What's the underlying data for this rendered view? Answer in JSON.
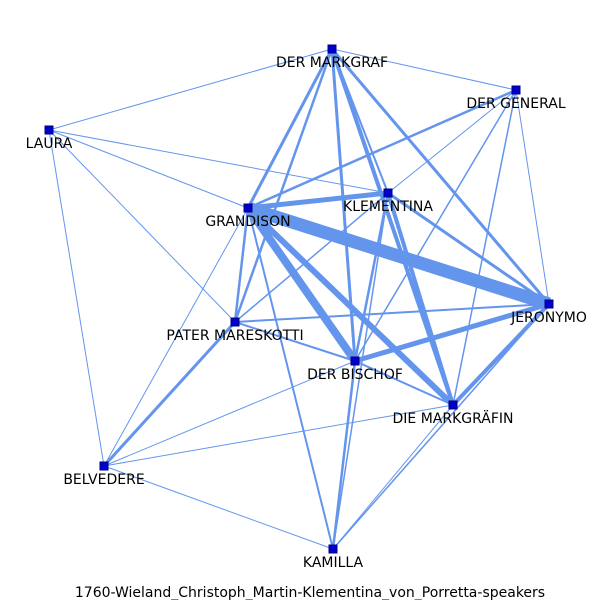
{
  "caption": "1760-Wieland_Christoph_Martin-Klementina_von_Porretta-speakers",
  "colors": {
    "edge": "#6495ED",
    "node": "#0000CD",
    "node_border": "#000080",
    "text": "#000000"
  },
  "nodes": [
    {
      "id": "markgraf",
      "label": "DER MARKGRAF"
    },
    {
      "id": "general",
      "label": "DER GENERAL"
    },
    {
      "id": "laura",
      "label": "LAURA"
    },
    {
      "id": "grandison",
      "label": "GRANDISON"
    },
    {
      "id": "klementina",
      "label": "KLEMENTINA"
    },
    {
      "id": "jeronymo",
      "label": "JERONYMO"
    },
    {
      "id": "pater",
      "label": "PATER MARESKOTTI"
    },
    {
      "id": "bischof",
      "label": "DER BISCHOF"
    },
    {
      "id": "markgraefin",
      "label": "DIE MARKGRÄFIN"
    },
    {
      "id": "belvedere",
      "label": "BELVEDERE"
    },
    {
      "id": "kamilla",
      "label": "KAMILLA"
    }
  ],
  "edges": [
    {
      "source": "grandison",
      "target": "jeronymo",
      "weight": 13
    },
    {
      "source": "grandison",
      "target": "bischof",
      "weight": 8
    },
    {
      "source": "grandison",
      "target": "markgraefin",
      "weight": 6
    },
    {
      "source": "grandison",
      "target": "klementina",
      "weight": 5
    },
    {
      "source": "bischof",
      "target": "jeronymo",
      "weight": 5
    },
    {
      "source": "markgraefin",
      "target": "jeronymo",
      "weight": 4
    },
    {
      "source": "klementina",
      "target": "markgraefin",
      "weight": 4
    },
    {
      "source": "markgraf",
      "target": "markgraefin",
      "weight": 4
    },
    {
      "source": "markgraf",
      "target": "grandison",
      "weight": 3
    },
    {
      "source": "markgraf",
      "target": "jeronymo",
      "weight": 3
    },
    {
      "source": "markgraf",
      "target": "bischof",
      "weight": 3
    },
    {
      "source": "markgraf",
      "target": "pater",
      "weight": 2.5
    },
    {
      "source": "markgraf",
      "target": "klementina",
      "weight": 2
    },
    {
      "source": "klementina",
      "target": "jeronymo",
      "weight": 3
    },
    {
      "source": "klementina",
      "target": "bischof",
      "weight": 2.5
    },
    {
      "source": "grandison",
      "target": "pater",
      "weight": 2.5
    },
    {
      "source": "grandison",
      "target": "general",
      "weight": 2.5
    },
    {
      "source": "grandison",
      "target": "kamilla",
      "weight": 2
    },
    {
      "source": "pater",
      "target": "belvedere",
      "weight": 3
    },
    {
      "source": "pater",
      "target": "bischof",
      "weight": 2
    },
    {
      "source": "pater",
      "target": "jeronymo",
      "weight": 2
    },
    {
      "source": "bischof",
      "target": "markgraefin",
      "weight": 2
    },
    {
      "source": "bischof",
      "target": "kamilla",
      "weight": 2.5
    },
    {
      "source": "pater",
      "target": "klementina",
      "weight": 1.5
    },
    {
      "source": "markgraefin",
      "target": "general",
      "weight": 1.5
    },
    {
      "source": "bischof",
      "target": "general",
      "weight": 1.5
    },
    {
      "source": "klementina",
      "target": "kamilla",
      "weight": 1.5
    },
    {
      "source": "kamilla",
      "target": "jeronymo",
      "weight": 1.5
    },
    {
      "source": "kamilla",
      "target": "markgraefin",
      "weight": 1
    },
    {
      "source": "belvedere",
      "target": "markgraefin",
      "weight": 1
    },
    {
      "source": "belvedere",
      "target": "bischof",
      "weight": 1
    },
    {
      "source": "belvedere",
      "target": "grandison",
      "weight": 1
    },
    {
      "source": "belvedere",
      "target": "kamilla",
      "weight": 1
    },
    {
      "source": "laura",
      "target": "markgraf",
      "weight": 1
    },
    {
      "source": "laura",
      "target": "grandison",
      "weight": 1
    },
    {
      "source": "laura",
      "target": "klementina",
      "weight": 1
    },
    {
      "source": "laura",
      "target": "pater",
      "weight": 1
    },
    {
      "source": "laura",
      "target": "belvedere",
      "weight": 1
    },
    {
      "source": "general",
      "target": "markgraf",
      "weight": 1
    },
    {
      "source": "general",
      "target": "jeronymo",
      "weight": 1
    },
    {
      "source": "general",
      "target": "klementina",
      "weight": 1
    }
  ]
}
